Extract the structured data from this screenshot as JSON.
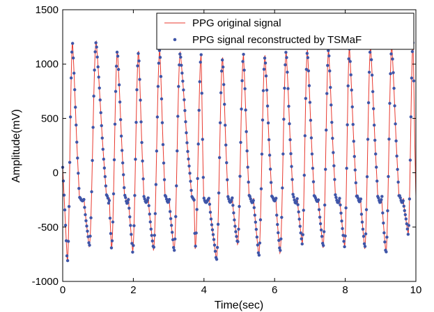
{
  "chart_data": {
    "type": "line",
    "xlabel": "Time(sec)",
    "ylabel": "Amplitude(mV)",
    "xlim": [
      0,
      10
    ],
    "ylim": [
      -1000,
      1500
    ],
    "xticks": [
      "0",
      "2",
      "4",
      "6",
      "8",
      "10"
    ],
    "yticks": [
      "-1000",
      "-500",
      "0",
      "500",
      "1000",
      "1500"
    ],
    "grid": false,
    "legend_position": "top-right",
    "colors": {
      "original": "#e8392f",
      "reconstructed": "#3f55a8"
    },
    "sample_rate_hz": 50,
    "beats": [
      {
        "start": 0.0,
        "peak_t": 0.28,
        "peak": 1200
      },
      {
        "start": 0.5,
        "peak_t": 0.95,
        "peak": 1210
      },
      {
        "start": 1.28,
        "peak_t": 1.55,
        "peak": 1120
      },
      {
        "start": 1.78,
        "peak_t": 2.15,
        "peak": 1120
      },
      {
        "start": 2.32,
        "peak_t": 2.75,
        "peak": 1130
      },
      {
        "start": 2.92,
        "peak_t": 3.33,
        "peak": 1110
      },
      {
        "start": 3.7,
        "peak_t": 3.92,
        "peak": 1080
      },
      {
        "start": 4.0,
        "peak_t": 4.53,
        "peak": 1060
      },
      {
        "start": 4.7,
        "peak_t": 5.12,
        "peak": 1080
      },
      {
        "start": 5.3,
        "peak_t": 5.73,
        "peak": 1080
      },
      {
        "start": 5.95,
        "peak_t": 6.33,
        "peak": 1110
      },
      {
        "start": 6.55,
        "peak_t": 6.93,
        "peak": 1130
      },
      {
        "start": 7.15,
        "peak_t": 7.53,
        "peak": 1130
      },
      {
        "start": 7.75,
        "peak_t": 8.12,
        "peak": 1150
      },
      {
        "start": 8.35,
        "peak_t": 8.72,
        "peak": 1160
      },
      {
        "start": 8.95,
        "peak_t": 9.32,
        "peak": 1170
      },
      {
        "start": 9.55,
        "peak_t": 9.92,
        "peak": 1190
      }
    ],
    "troughs": [
      {
        "t": 0.13,
        "v": -820
      },
      {
        "t": 0.75,
        "v": -680
      },
      {
        "t": 1.38,
        "v": -700
      },
      {
        "t": 1.98,
        "v": -720
      },
      {
        "t": 2.57,
        "v": -710
      },
      {
        "t": 3.15,
        "v": -720
      },
      {
        "t": 3.75,
        "v": -700
      },
      {
        "t": 4.35,
        "v": -800
      },
      {
        "t": 4.95,
        "v": -660
      },
      {
        "t": 5.55,
        "v": -760
      },
      {
        "t": 6.15,
        "v": -740
      },
      {
        "t": 6.78,
        "v": -650
      },
      {
        "t": 7.37,
        "v": -690
      },
      {
        "t": 7.98,
        "v": -680
      },
      {
        "t": 8.55,
        "v": -700
      },
      {
        "t": 9.15,
        "v": -740
      },
      {
        "t": 9.78,
        "v": -560
      }
    ],
    "series": [
      {
        "name": "PPG original signal",
        "style": "line"
      },
      {
        "name": "PPG signal reconstructed by TSMaF",
        "style": "markers"
      }
    ]
  }
}
